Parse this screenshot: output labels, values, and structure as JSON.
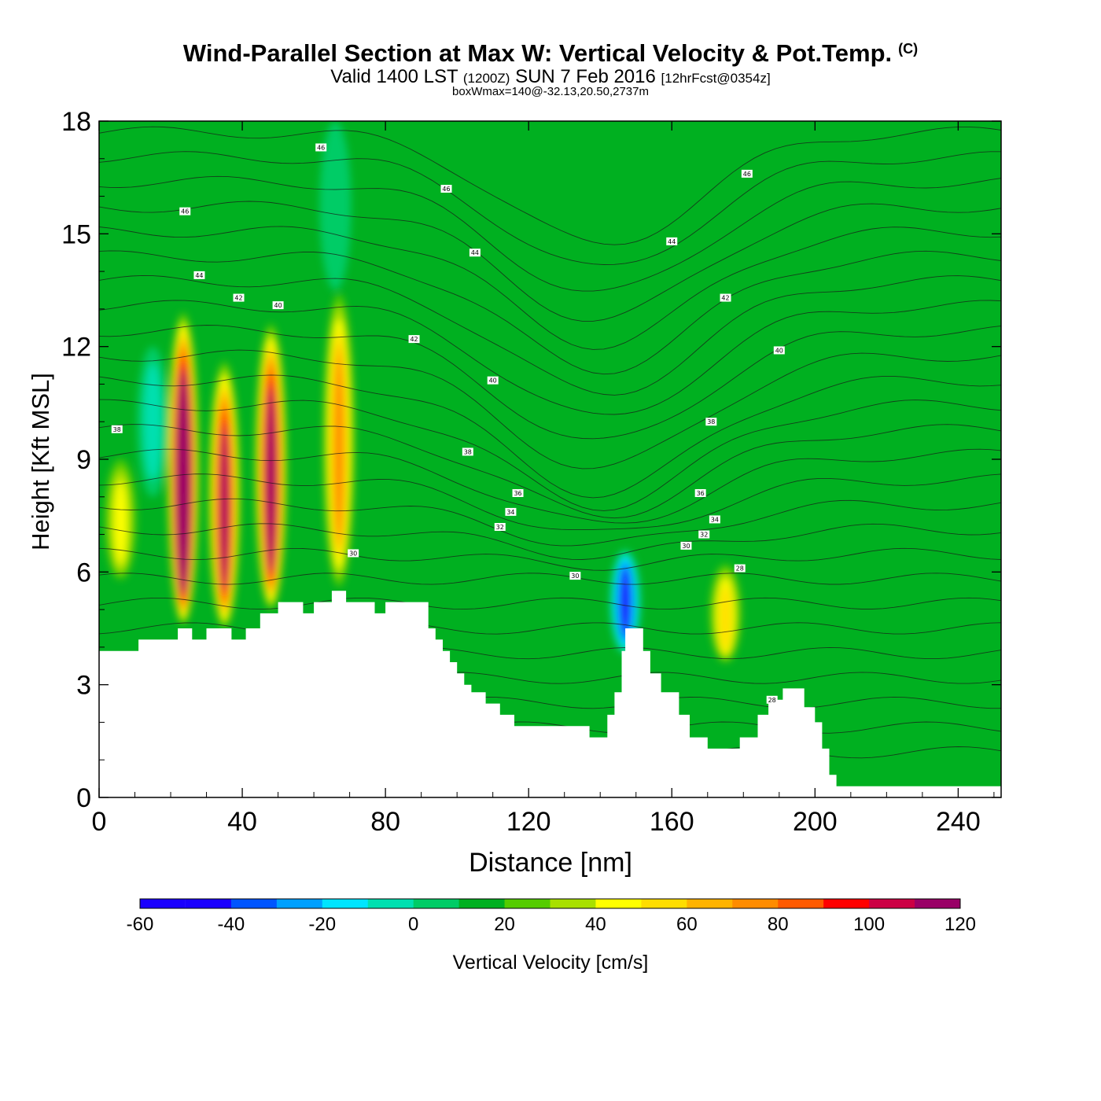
{
  "title": "Wind-Parallel Section at Max W: Vertical Velocity & Pot.Temp.",
  "title_mark": "(C)",
  "subtitle_main": "Valid 1400 LST",
  "subtitle_utc": "(1200Z)",
  "subtitle_date": "SUN 7 Feb 2016",
  "subtitle_fcst": "[12hrFcst@0354z]",
  "subtitle3": "boxWmax=140@-32.13,20.50,2737m",
  "chart_data": {
    "type": "heatmap",
    "description_var": "vertical velocity (filled) with potential temperature contours",
    "xlabel": "Distance [nm]",
    "ylabel": "Height [Kft MSL]",
    "xlim": [
      0,
      252
    ],
    "ylim": [
      0,
      18
    ],
    "x_ticks": [
      "0",
      "40",
      "80",
      "120",
      "160",
      "200",
      "240"
    ],
    "x_tick_values": [
      0,
      40,
      80,
      120,
      160,
      200,
      240
    ],
    "y_ticks": [
      "0",
      "3",
      "6",
      "9",
      "12",
      "15",
      "18"
    ],
    "y_tick_values": [
      0,
      3,
      6,
      9,
      12,
      15,
      18
    ],
    "colorbar": {
      "label": "Vertical Velocity [cm/s]",
      "ticks": [
        "-60",
        "-40",
        "-20",
        "0",
        "20",
        "40",
        "60",
        "80",
        "100",
        "120"
      ],
      "colors": [
        "#1a00ff",
        "#0055ff",
        "#00a0ff",
        "#00e5ff",
        "#00e0b0",
        "#00cc66",
        "#00b020",
        "#55cc00",
        "#a8e000",
        "#ffff00",
        "#ffdd00",
        "#ffb300",
        "#ff8c00",
        "#ff5a00",
        "#ff0000",
        "#cc0044",
        "#990066"
      ]
    },
    "terrain": [
      [
        0,
        3.9
      ],
      [
        11,
        3.9
      ],
      [
        11,
        4.2
      ],
      [
        22,
        4.2
      ],
      [
        22,
        4.5
      ],
      [
        26,
        4.5
      ],
      [
        26,
        4.2
      ],
      [
        30,
        4.2
      ],
      [
        30,
        4.5
      ],
      [
        37,
        4.5
      ],
      [
        37,
        4.2
      ],
      [
        41,
        4.2
      ],
      [
        41,
        4.5
      ],
      [
        45,
        4.5
      ],
      [
        45,
        4.9
      ],
      [
        50,
        4.9
      ],
      [
        50,
        5.2
      ],
      [
        57,
        5.2
      ],
      [
        57,
        4.9
      ],
      [
        60,
        4.9
      ],
      [
        60,
        5.2
      ],
      [
        65,
        5.2
      ],
      [
        65,
        5.5
      ],
      [
        69,
        5.5
      ],
      [
        69,
        5.2
      ],
      [
        77,
        5.2
      ],
      [
        77,
        4.9
      ],
      [
        80,
        4.9
      ],
      [
        80,
        5.2
      ],
      [
        92,
        5.2
      ],
      [
        92,
        4.5
      ],
      [
        94,
        4.5
      ],
      [
        94,
        4.2
      ],
      [
        96,
        4.2
      ],
      [
        96,
        3.9
      ],
      [
        98,
        3.9
      ],
      [
        98,
        3.6
      ],
      [
        100,
        3.6
      ],
      [
        100,
        3.3
      ],
      [
        102,
        3.3
      ],
      [
        102,
        3.0
      ],
      [
        104,
        3.0
      ],
      [
        104,
        2.8
      ],
      [
        108,
        2.8
      ],
      [
        108,
        2.5
      ],
      [
        112,
        2.5
      ],
      [
        112,
        2.2
      ],
      [
        116,
        2.2
      ],
      [
        116,
        1.9
      ],
      [
        137,
        1.9
      ],
      [
        137,
        1.6
      ],
      [
        142,
        1.6
      ],
      [
        142,
        2.2
      ],
      [
        144,
        2.2
      ],
      [
        144,
        2.8
      ],
      [
        146,
        2.8
      ],
      [
        146,
        3.9
      ],
      [
        147,
        3.9
      ],
      [
        147,
        4.5
      ],
      [
        152,
        4.5
      ],
      [
        152,
        3.9
      ],
      [
        154,
        3.9
      ],
      [
        154,
        3.3
      ],
      [
        157,
        3.3
      ],
      [
        157,
        2.8
      ],
      [
        162,
        2.8
      ],
      [
        162,
        2.2
      ],
      [
        165,
        2.2
      ],
      [
        165,
        1.6
      ],
      [
        170,
        1.6
      ],
      [
        170,
        1.3
      ],
      [
        179,
        1.3
      ],
      [
        179,
        1.6
      ],
      [
        184,
        1.6
      ],
      [
        184,
        2.2
      ],
      [
        187,
        2.2
      ],
      [
        187,
        2.6
      ],
      [
        191,
        2.6
      ],
      [
        191,
        2.9
      ],
      [
        197,
        2.9
      ],
      [
        197,
        2.4
      ],
      [
        200,
        2.4
      ],
      [
        200,
        2.0
      ],
      [
        202,
        2.0
      ],
      [
        202,
        1.3
      ],
      [
        204,
        1.3
      ],
      [
        204,
        0.6
      ],
      [
        206,
        0.6
      ],
      [
        206,
        0.3
      ],
      [
        252,
        0.3
      ]
    ],
    "updraft_cores": [
      {
        "x": 23.5,
        "z0": 4.6,
        "z1": 12.9,
        "w": 140
      },
      {
        "x": 35,
        "z0": 4.5,
        "z1": 11.6,
        "w": 95
      },
      {
        "x": 48,
        "z0": 5.0,
        "z1": 12.6,
        "w": 110
      },
      {
        "x": 67,
        "z0": 5.6,
        "z1": 13.4,
        "w": 55
      },
      {
        "x": 175,
        "z0": 3.6,
        "z1": 6.2,
        "w": 40
      },
      {
        "x": 6,
        "z0": 5.8,
        "z1": 9.0,
        "w": 25
      }
    ],
    "downdraft_cores": [
      {
        "x": 147,
        "z0": 3.8,
        "z1": 6.6,
        "w": -55
      },
      {
        "x": 15,
        "z0": 8.0,
        "z1": 12.0,
        "w": -15
      },
      {
        "x": 66,
        "z0": 13.5,
        "z1": 18.0,
        "w": -12
      }
    ],
    "theta_labels": [
      {
        "x": 62,
        "z": 17.3,
        "t": "46"
      },
      {
        "x": 24,
        "z": 15.6,
        "t": "46"
      },
      {
        "x": 97,
        "z": 16.2,
        "t": "46"
      },
      {
        "x": 181,
        "z": 16.6,
        "t": "46"
      },
      {
        "x": 28,
        "z": 13.9,
        "t": "44"
      },
      {
        "x": 105,
        "z": 14.5,
        "t": "44"
      },
      {
        "x": 160,
        "z": 14.8,
        "t": "44"
      },
      {
        "x": 39,
        "z": 13.3,
        "t": "42"
      },
      {
        "x": 88,
        "z": 12.2,
        "t": "42"
      },
      {
        "x": 175,
        "z": 13.3,
        "t": "42"
      },
      {
        "x": 50,
        "z": 13.1,
        "t": "40"
      },
      {
        "x": 110,
        "z": 11.1,
        "t": "40"
      },
      {
        "x": 190,
        "z": 11.9,
        "t": "40"
      },
      {
        "x": 5,
        "z": 9.8,
        "t": "38"
      },
      {
        "x": 103,
        "z": 9.2,
        "t": "38"
      },
      {
        "x": 171,
        "z": 10.0,
        "t": "38"
      },
      {
        "x": 117,
        "z": 8.1,
        "t": "36"
      },
      {
        "x": 168,
        "z": 8.1,
        "t": "36"
      },
      {
        "x": 115,
        "z": 7.6,
        "t": "34"
      },
      {
        "x": 172,
        "z": 7.4,
        "t": "34"
      },
      {
        "x": 112,
        "z": 7.2,
        "t": "32"
      },
      {
        "x": 169,
        "z": 7.0,
        "t": "32"
      },
      {
        "x": 164,
        "z": 6.7,
        "t": "30"
      },
      {
        "x": 133,
        "z": 5.9,
        "t": "30"
      },
      {
        "x": 71,
        "z": 6.5,
        "t": "30"
      },
      {
        "x": 179,
        "z": 6.1,
        "t": "28"
      },
      {
        "x": 188,
        "z": 2.6,
        "t": "28"
      }
    ]
  }
}
